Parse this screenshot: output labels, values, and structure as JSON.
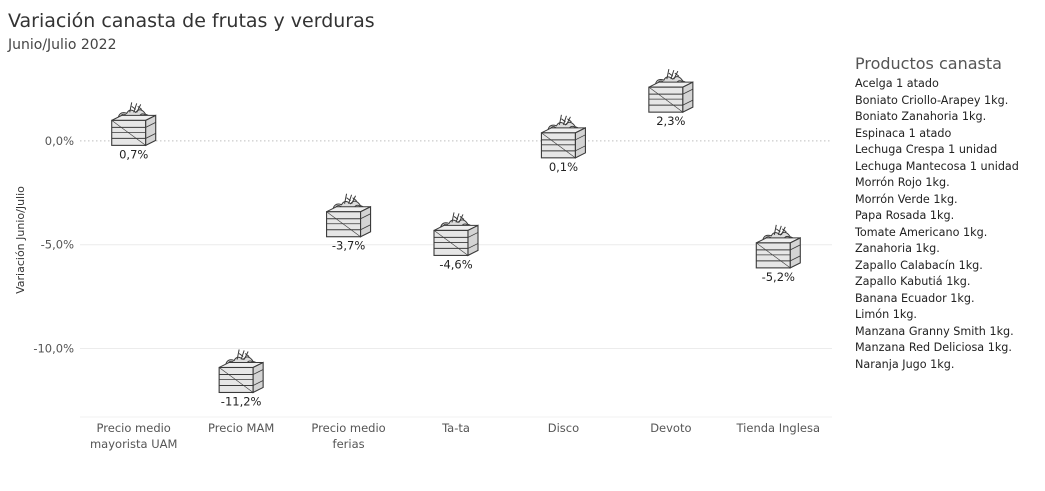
{
  "title": "Variación canasta de frutas y verduras",
  "subtitle": "Junio/Julio 2022",
  "chart_data": {
    "type": "scatter",
    "marker": "crate-of-produce-icon",
    "categories": [
      [
        "Precio medio",
        "mayorista UAM"
      ],
      [
        "Precio MAM"
      ],
      [
        "Precio medio",
        "ferias"
      ],
      [
        "Ta-ta"
      ],
      [
        "Disco"
      ],
      [
        "Devoto"
      ],
      [
        "Tienda Inglesa"
      ]
    ],
    "values": [
      0.7,
      -11.2,
      -3.7,
      -4.6,
      0.1,
      2.3,
      -5.2
    ],
    "data_labels": [
      "0,7%",
      "-11,2%",
      "-3,7%",
      "-4,6%",
      "0,1%",
      "2,3%",
      "-5,2%"
    ],
    "ylabel": "Variación Junio/Julio",
    "yticks": [
      0,
      -5,
      -10
    ],
    "ytick_labels": [
      "0,0%",
      "-5,0%",
      "-10,0%"
    ],
    "ylim": [
      -13.2,
      3.8
    ],
    "zero_line": "dotted",
    "grid": true
  },
  "legend": {
    "title": "Productos canasta",
    "items": [
      "Acelga 1 atado",
      "Boniato Criollo-Arapey 1kg.",
      "Boniato Zanahoria 1kg.",
      "Espinaca 1 atado",
      "Lechuga Crespa 1 unidad",
      "Lechuga Mantecosa 1 unidad",
      "Morrón Rojo 1kg.",
      "Morrón Verde 1kg.",
      "Papa Rosada  1kg.",
      "Tomate Americano 1kg.",
      "Zanahoria 1kg.",
      "Zapallo Calabacín  1kg.",
      "Zapallo Kabutiá 1kg.",
      "Banana Ecuador 1kg.",
      "Limón 1kg.",
      "Manzana Granny Smith 1kg.",
      "Manzana Red Deliciosa 1kg.",
      "Naranja Jugo 1kg."
    ]
  },
  "colors": {
    "marker_stroke": "#3a3a3a",
    "marker_fill": "#e9e9e9",
    "zero_line": "#bfbfbf",
    "grid": "#ececec",
    "text": "#333333"
  }
}
